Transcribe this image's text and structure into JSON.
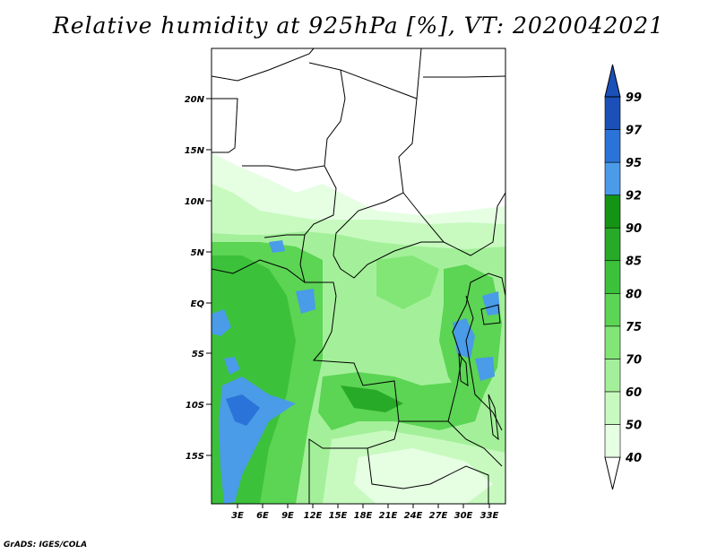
{
  "title": "Relative humidity at 925hPa [%], VT: 2020042021",
  "credit": "GrADS: IGES/COLA",
  "map": {
    "lat_labels": [
      "20N",
      "15N",
      "10N",
      "5N",
      "EQ",
      "5S",
      "10S",
      "15S"
    ],
    "lon_labels": [
      "3E",
      "6E",
      "9E",
      "12E",
      "15E",
      "18E",
      "21E",
      "24E",
      "27E",
      "30E",
      "33E"
    ]
  },
  "colorbar": {
    "levels": [
      "40",
      "50",
      "60",
      "70",
      "75",
      "80",
      "85",
      "90",
      "92",
      "95",
      "97",
      "99"
    ],
    "colors": [
      "#ffffff",
      "#e6ffe3",
      "#c8fac0",
      "#a4f09a",
      "#82e676",
      "#5cd454",
      "#3cc13a",
      "#27aa27",
      "#149414",
      "#4a9be8",
      "#2a73d8",
      "#1a50b8"
    ]
  }
}
